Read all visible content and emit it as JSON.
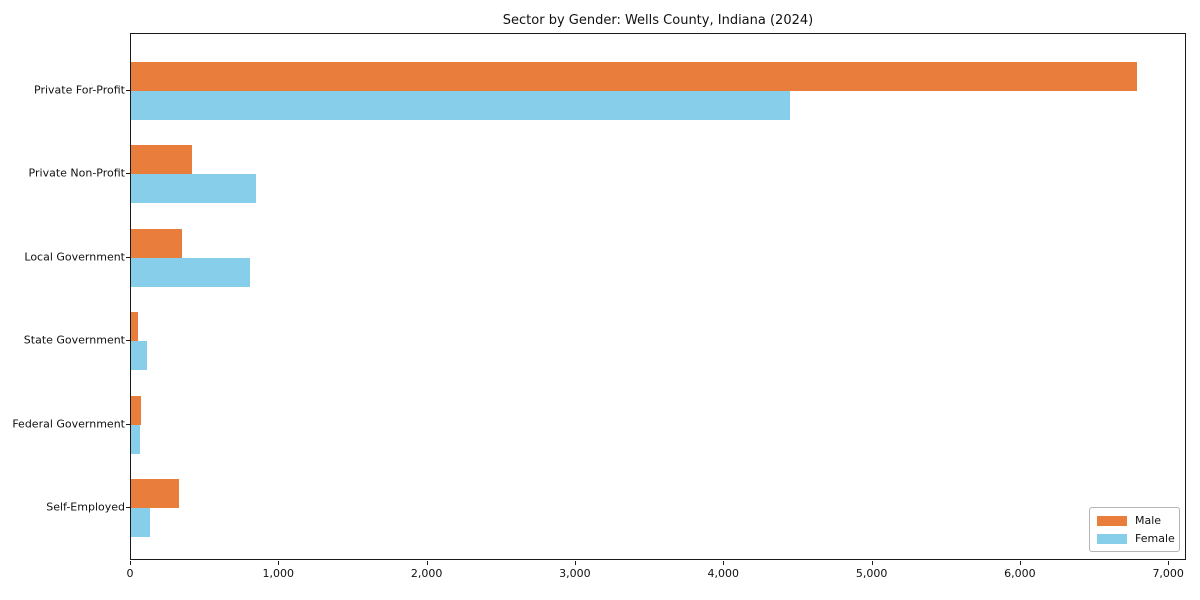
{
  "title": "Sector by Gender: Wells County, Indiana (2024)",
  "chart_data": {
    "type": "bar",
    "orientation": "horizontal",
    "title": "Sector by Gender: Wells County, Indiana (2024)",
    "categories": [
      "Private For-Profit",
      "Private Non-Profit",
      "Local Government",
      "State Government",
      "Federal Government",
      "Self-Employed"
    ],
    "series": [
      {
        "name": "Male",
        "color": "#e87d3c",
        "values": [
          6780,
          410,
          345,
          50,
          70,
          325
        ]
      },
      {
        "name": "Female",
        "color": "#87ceeb",
        "values": [
          4440,
          840,
          800,
          110,
          60,
          130
        ]
      }
    ],
    "xlabel": "",
    "ylabel": "",
    "xlim": [
      0,
      7120
    ],
    "xticks": [
      0,
      1000,
      2000,
      3000,
      4000,
      5000,
      6000,
      7000
    ],
    "xtick_labels": [
      "0",
      "1,000",
      "2,000",
      "3,000",
      "4,000",
      "5,000",
      "6,000",
      "7,000"
    ],
    "grid": false,
    "legend_position": "lower right",
    "spine_color": "#1a1a1a",
    "background_color": "#ffffff"
  }
}
